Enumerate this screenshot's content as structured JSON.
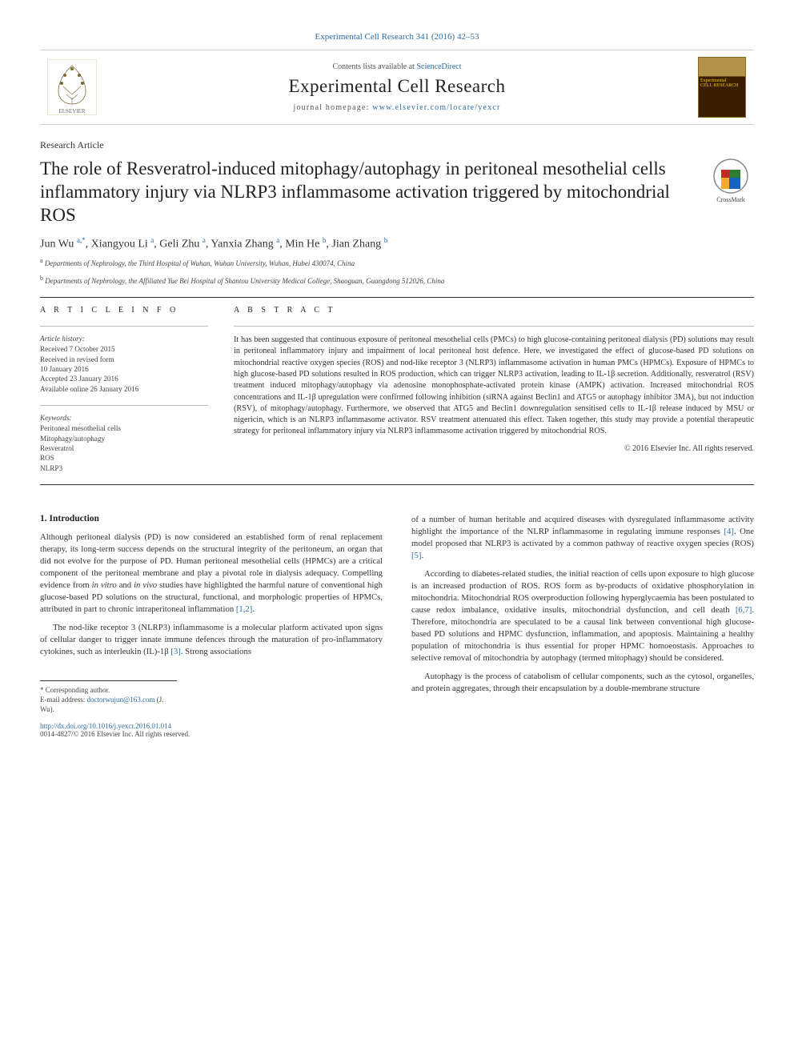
{
  "header": {
    "citation_link": "Experimental Cell Research 341 (2016) 42–53",
    "contents_prefix": "Contents lists available at ",
    "contents_site": "ScienceDirect",
    "journal_name": "Experimental Cell Research",
    "homepage_prefix": "journal homepage: ",
    "homepage_url": "www.elsevier.com/locate/yexcr",
    "publisher_logo_alt": "ELSEVIER",
    "cover_line1": "Experimental",
    "cover_line2": "CELL RESEARCH"
  },
  "article": {
    "type": "Research Article",
    "title": "The role of Resveratrol-induced mitophagy/autophagy in peritoneal mesothelial cells inflammatory injury via NLRP3 inflammasome activation triggered by mitochondrial ROS",
    "crossmark_label": "CrossMark",
    "authors_html": "Jun Wu <sup>a,</sup><sup class='star-sup'>*</sup>, Xiangyou Li <sup>a</sup>, Geli Zhu <sup>a</sup>, Yanxia Zhang <sup>a</sup>, Min He <sup>b</sup>, Jian Zhang <sup>b</sup>",
    "affiliations": [
      "a Departments of Nephrology, the Third Hospital of Wuhan, Wuhan University, Wuhan, Hubei 430074, China",
      "b Departments of Nephrology, the Affiliated Yue Bei Hospital of Shantou University Medical College, Shaoguan, Guangdong 512026, China"
    ]
  },
  "meta": {
    "info_head": "A R T I C L E  I N F O",
    "abs_head": "A B S T R A C T",
    "history_label": "Article history:",
    "history": "Received 7 October 2015\nReceived in revised form\n10 January 2016\nAccepted 23 January 2016\nAvailable online 26 January 2016",
    "keywords_label": "Keywords:",
    "keywords": [
      "Peritoneal mesothelial cells",
      "Mitophagy/autophagy",
      "Resveratrol",
      "ROS",
      "NLRP3"
    ],
    "abstract": "It has been suggested that continuous exposure of peritoneal mesothelial cells (PMCs) to high glucose-containing peritoneal dialysis (PD) solutions may result in peritoneal inflammatory injury and impairment of local peritoneal host defence. Here, we investigated the effect of glucose-based PD solutions on mitochondrial reactive oxygen species (ROS) and nod-like receptor 3 (NLRP3) inflammasome activation in human PMCs (HPMCs). Exposure of HPMCs to high glucose-based PD solutions resulted in ROS production, which can trigger NLRP3 activation, leading to IL-1β secretion. Additionally, resveratrol (RSV) treatment induced mitophagy/autophagy via adenosine monophosphate-activated protein kinase (AMPK) activation. Increased mitochondrial ROS concentrations and IL-1β upregulation were confirmed following inhibition (siRNA against Beclin1 and ATG5 or autophagy inhibitor 3MA), but not induction (RSV), of mitophagy/autophagy. Furthermore, we observed that ATG5 and Beclin1 downregulation sensitised cells to IL-1β release induced by MSU or nigericin, which is an NLRP3 inflammasome activator. RSV treatment attenuated this effect. Taken together, this study may provide a potential therapeutic strategy for peritoneal inflammatory injury via NLRP3 inflammasome activation triggered by mitochondrial ROS.",
    "copyright": "© 2016 Elsevier Inc. All rights reserved."
  },
  "body": {
    "section_heading": "1. Introduction",
    "left_paras": [
      "Although peritoneal dialysis (PD) is now considered an established form of renal replacement therapy, its long-term success depends on the structural integrity of the peritoneum, an organ that did not evolve for the purpose of PD. Human peritoneal mesothelial cells (HPMCs) are a critical component of the peritoneal membrane and play a pivotal role in dialysis adequacy. Compelling evidence from in vitro and in vivo studies have highlighted the harmful nature of conventional high glucose-based PD solutions on the structural, functional, and morphologic properties of HPMCs, attributed in part to chronic intraperitoneal inflammation [1,2].",
      "The nod-like receptor 3 (NLRP3) inflammasome is a molecular platform activated upon signs of cellular danger to trigger innate immune defences through the maturation of pro-inflammatory cytokines, such as interleukin (IL)-1β [3]. Strong associations"
    ],
    "right_paras": [
      "of a number of human heritable and acquired diseases with dysregulated inflammasome activity highlight the importance of the NLRP inflammasome in regulating immune responses [4]. One model proposed that NLRP3 is activated by a common pathway of reactive oxygen species (ROS) [5].",
      "According to diabetes-related studies, the initial reaction of cells upon exposure to high glucose is an increased production of ROS. ROS form as by-products of oxidative phosphorylation in mitochondria. Mitochondrial ROS overproduction following hyperglycaemia has been postulated to cause redox imbalance, oxidative insults, mitochondrial dysfunction, and cell death [6,7]. Therefore, mitochondria are speculated to be a causal link between conventional high glucose-based PD solutions and HPMC dysfunction, inflammation, and apoptosis. Maintaining a healthy population of mitochondria is thus essential for proper HPMC homoeostasis. Approaches to selective removal of mitochondria by autophagy (termed mitophagy) should be considered.",
      "Autophagy is the process of catabolism of cellular components, such as the cytosol, organelles, and protein aggregates, through their encapsulation by a double-membrane structure"
    ]
  },
  "cites": {
    "c12": "[1,2]",
    "c3": "[3]",
    "c4": "[4]",
    "c5": "[5]",
    "c67": "[6,7]"
  },
  "footer": {
    "corr_label": "* Corresponding author.",
    "email_label": "E-mail address: ",
    "email": "doctorwujun@163.com",
    "email_suffix": " (J. Wu).",
    "doi": "http://dx.doi.org/10.1016/j.yexcr.2016.01.014",
    "issn_line": "0014-4827/© 2016 Elsevier Inc. All rights reserved."
  },
  "colors": {
    "link": "#2d6ca2",
    "text": "#333333",
    "rule": "#333333",
    "rule_light": "#bbbbbb"
  }
}
